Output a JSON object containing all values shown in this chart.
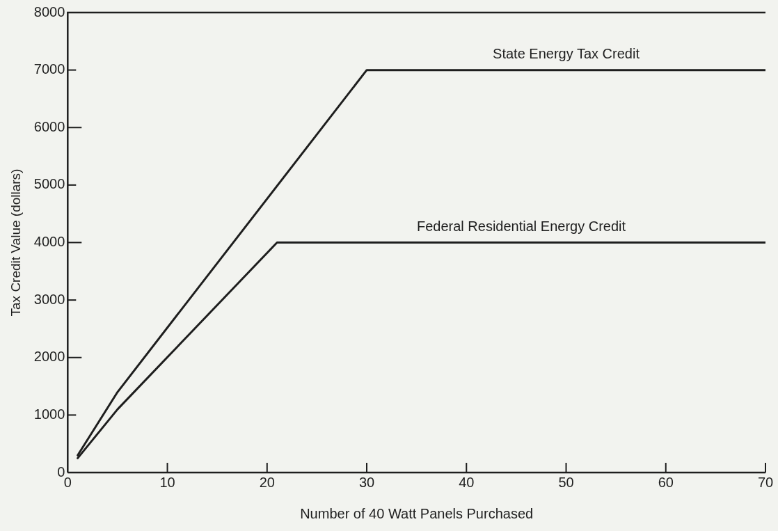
{
  "chart_data": {
    "type": "line",
    "xlabel": "Number of 40 Watt Panels Purchased",
    "ylabel": "Tax Credit Value (dollars)",
    "xlim": [
      0,
      70
    ],
    "xticks": [
      0,
      10,
      20,
      30,
      40,
      50,
      60,
      70
    ],
    "ylim": [
      0,
      8000
    ],
    "yticks": [
      0,
      1000,
      2000,
      3000,
      4000,
      5000,
      6000,
      7000,
      8000
    ],
    "grid": false,
    "legend": false,
    "marker": "none",
    "line_style": "solid",
    "series": [
      {
        "name": "State Energy Tax Credit",
        "color": "#1e1e1e",
        "x": [
          1,
          5,
          30,
          70
        ],
        "values": [
          300,
          1400,
          7000,
          7000
        ]
      },
      {
        "name": "Federal Residential Energy Credit",
        "color": "#1e1e1e",
        "x": [
          1,
          5,
          21,
          70
        ],
        "values": [
          250,
          1100,
          4000,
          4000
        ]
      }
    ]
  }
}
